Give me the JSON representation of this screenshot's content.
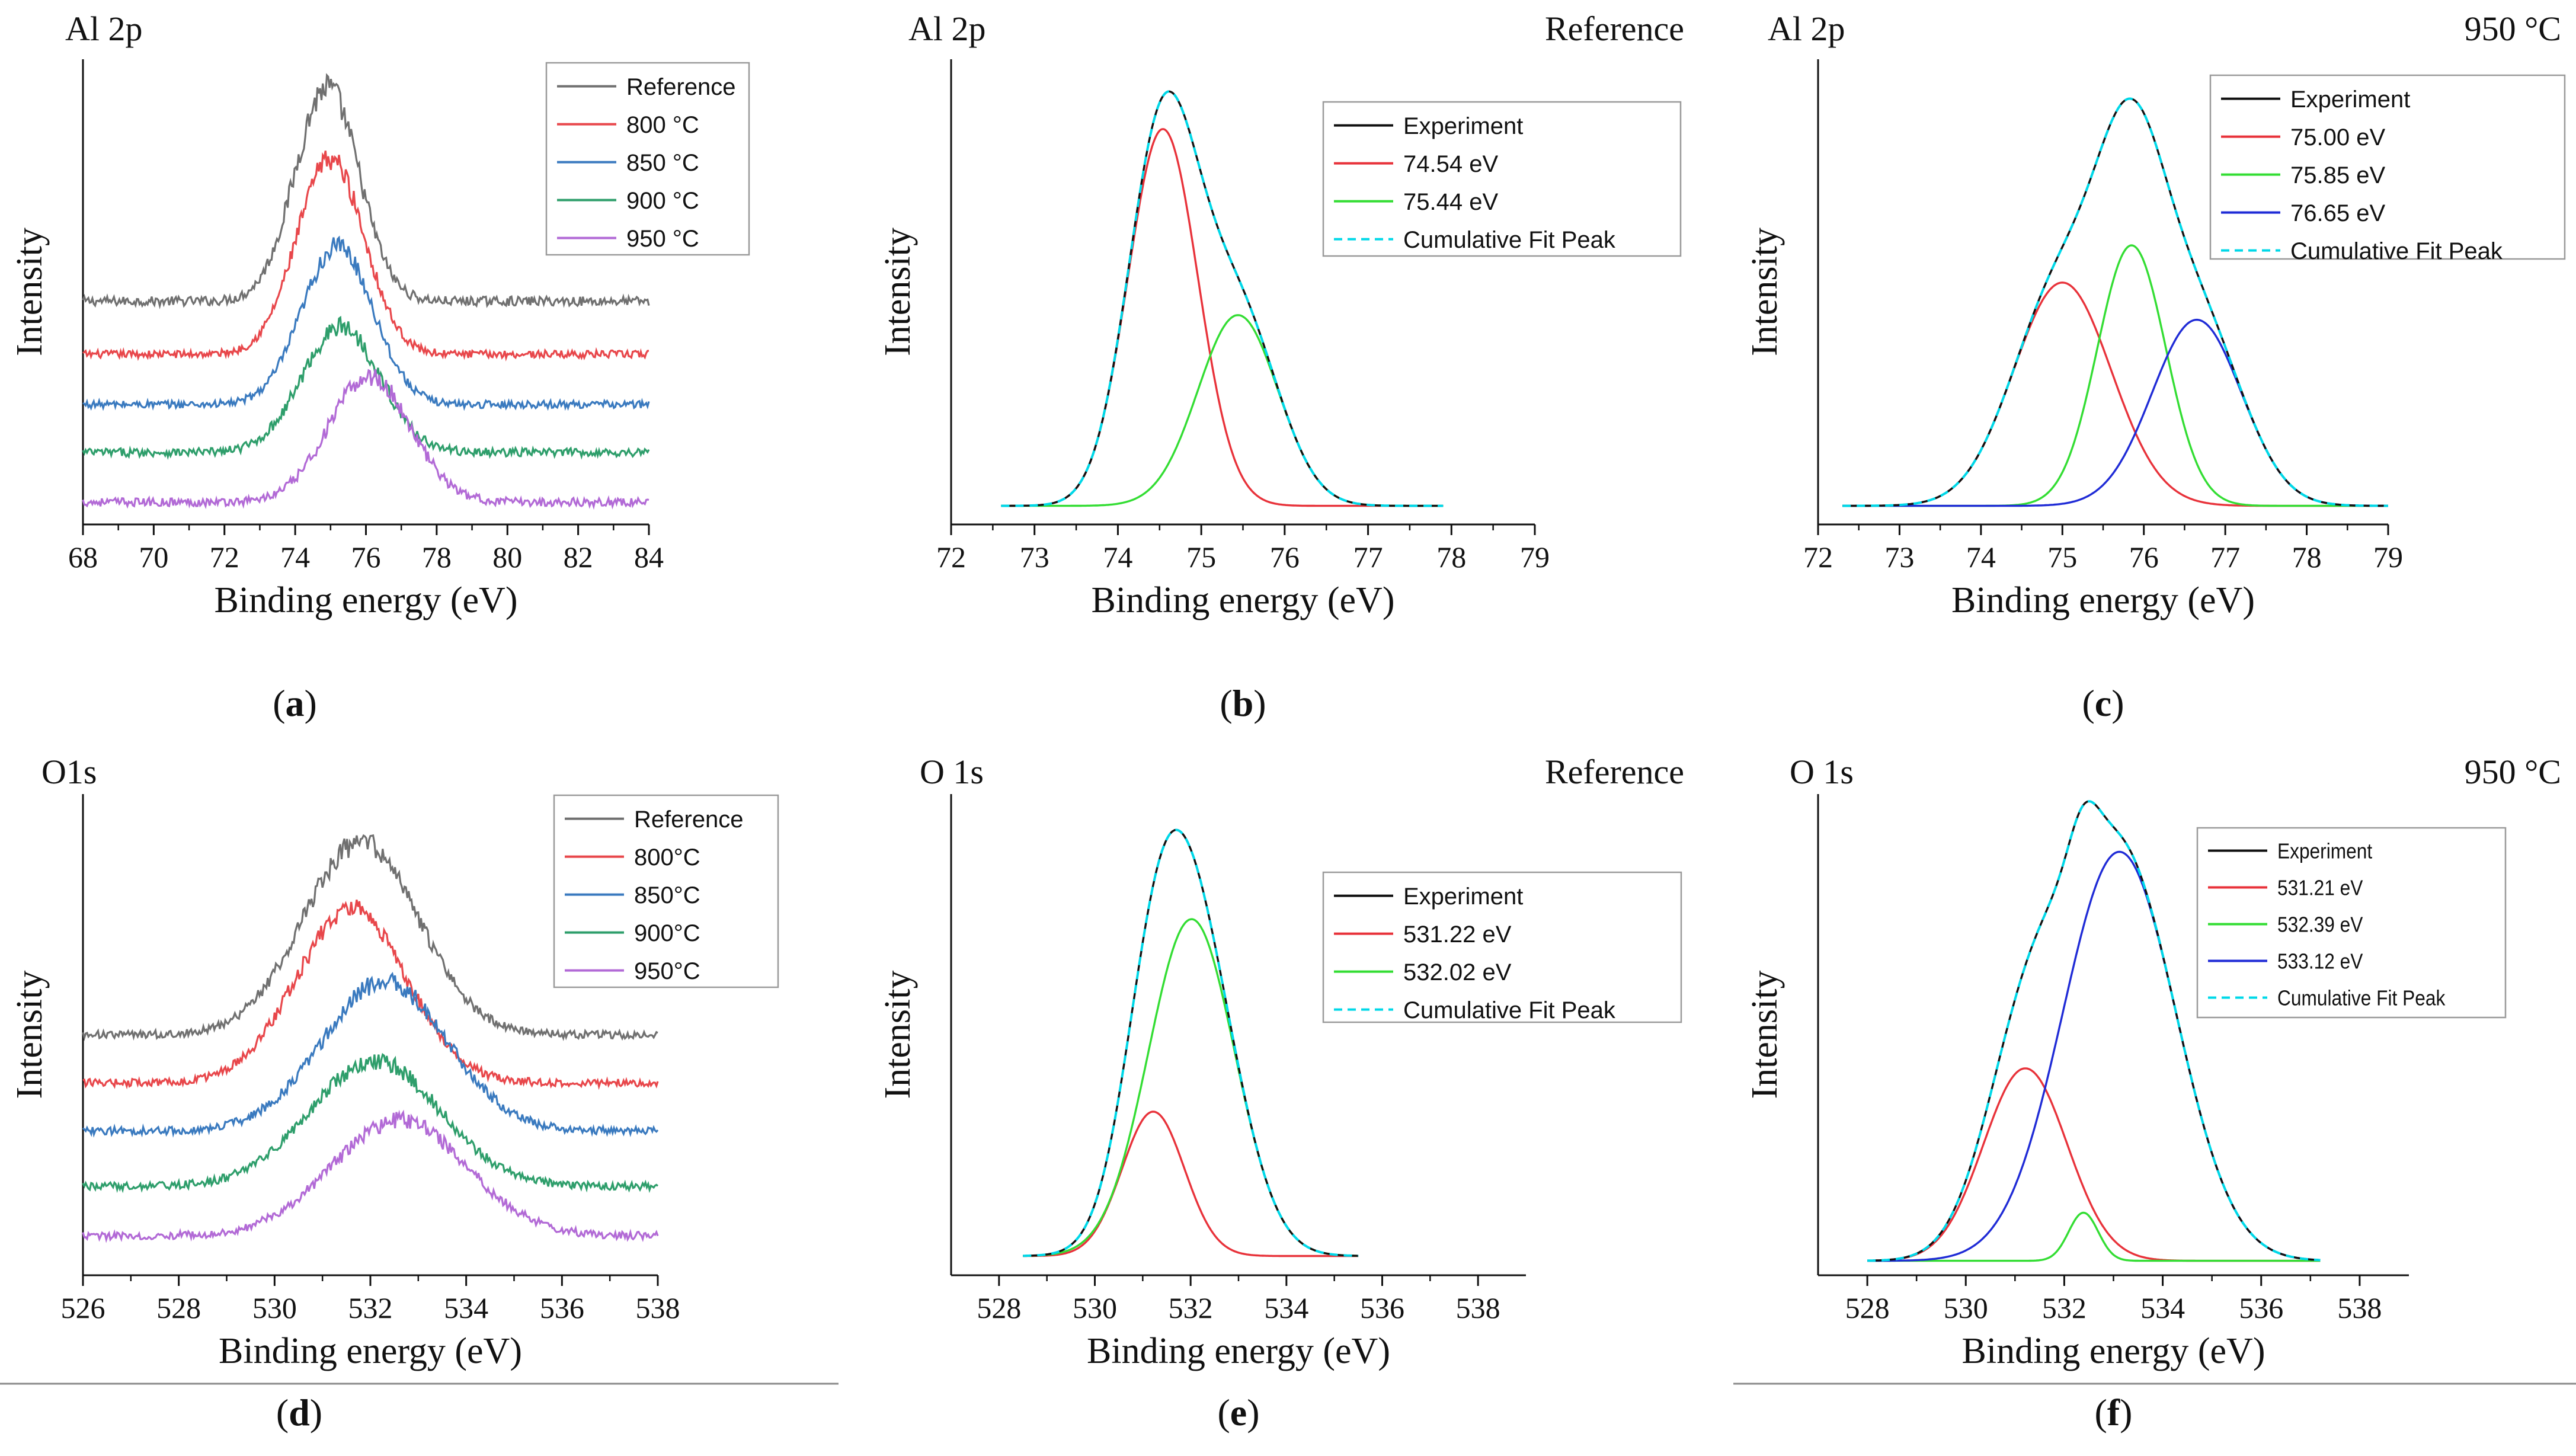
{
  "figure": {
    "background": "#ffffff"
  },
  "chart_data": [
    {
      "id": "a",
      "type": "line",
      "mode": "stack",
      "panel_label": "a",
      "title_left": "Al 2p",
      "title_right": "",
      "xlabel": "Binding energy (eV)",
      "ylabel": "Intensity",
      "xlim": [
        68,
        84
      ],
      "ylim": [
        0,
        1.0
      ],
      "xticks": [
        "68",
        "70",
        "72",
        "74",
        "76",
        "78",
        "80",
        "82",
        "84"
      ],
      "legend": {
        "position": "top-right",
        "font": "sans"
      },
      "series": [
        {
          "name": "Reference",
          "color": "#707070",
          "baseline": 0.48,
          "noise": 0.01,
          "peaks": [
            {
              "center": 74.9,
              "height": 0.46,
              "width": 0.9
            }
          ]
        },
        {
          "name": "800 °C",
          "color": "#e8474b",
          "baseline": 0.366,
          "noise": 0.008,
          "peaks": [
            {
              "center": 75.0,
              "height": 0.42,
              "width": 0.95
            }
          ]
        },
        {
          "name": "850 °C",
          "color": "#3a7abf",
          "baseline": 0.258,
          "noise": 0.008,
          "peaks": [
            {
              "center": 75.2,
              "height": 0.34,
              "width": 1.0
            }
          ]
        },
        {
          "name": "900 °C",
          "color": "#2e9e6b",
          "baseline": 0.155,
          "noise": 0.009,
          "peaks": [
            {
              "center": 75.3,
              "height": 0.27,
              "width": 1.1
            }
          ]
        },
        {
          "name": "950 °C",
          "color": "#b26ad6",
          "baseline": 0.048,
          "noise": 0.009,
          "peaks": [
            {
              "center": 76.1,
              "height": 0.27,
              "width": 1.15
            }
          ]
        }
      ]
    },
    {
      "id": "b",
      "type": "line",
      "mode": "fit",
      "panel_label": "b",
      "title_left": "Al 2p",
      "title_right": "Reference",
      "xlabel": "Binding energy (eV)",
      "ylabel": "Intensity",
      "xlim": [
        72,
        79
      ],
      "ylim": [
        0,
        1.0
      ],
      "xrange": [
        72.6,
        77.9
      ],
      "baseline": 0.04,
      "xticks": [
        "72",
        "73",
        "74",
        "75",
        "76",
        "77",
        "78",
        "79"
      ],
      "legend": {
        "position": "top-right",
        "font": "sans"
      },
      "series": [
        {
          "name": "Experiment",
          "color": "#111111",
          "kind": "sum"
        },
        {
          "name": "74.54 eV",
          "color": "#e8323a",
          "kind": "component",
          "center": 74.54,
          "height": 0.81,
          "width": 0.42
        },
        {
          "name": "75.44 eV",
          "color": "#33dd33",
          "kind": "component",
          "center": 75.44,
          "height": 0.41,
          "width": 0.48
        },
        {
          "name": "Cumulative Fit Peak",
          "color": "#00d8e8",
          "kind": "sum",
          "dashed": true
        }
      ]
    },
    {
      "id": "c",
      "type": "line",
      "mode": "fit",
      "panel_label": "c",
      "title_left": "Al 2p",
      "title_right": "950 °C",
      "xlabel": "Binding energy (eV)",
      "ylabel": "Intensity",
      "xlim": [
        72,
        79
      ],
      "ylim": [
        0,
        1.0
      ],
      "xrange": [
        72.3,
        79.0
      ],
      "baseline": 0.04,
      "xticks": [
        "72",
        "73",
        "74",
        "75",
        "76",
        "77",
        "78",
        "79"
      ],
      "legend": {
        "position": "top-right",
        "font": "sans"
      },
      "series": [
        {
          "name": "Experiment",
          "color": "#111111",
          "kind": "sum"
        },
        {
          "name": "75.00 eV",
          "color": "#e8323a",
          "kind": "component",
          "center": 75.0,
          "height": 0.48,
          "width": 0.6
        },
        {
          "name": "75.85 eV",
          "color": "#33dd33",
          "kind": "component",
          "center": 75.85,
          "height": 0.56,
          "width": 0.42
        },
        {
          "name": "76.65 eV",
          "color": "#1f2bd6",
          "kind": "component",
          "center": 76.65,
          "height": 0.4,
          "width": 0.55
        },
        {
          "name": "Cumulative Fit Peak",
          "color": "#00d8e8",
          "kind": "sum",
          "dashed": true
        }
      ]
    },
    {
      "id": "d",
      "type": "line",
      "mode": "stack",
      "panel_label": "d",
      "title_left": "O1s",
      "title_right": "",
      "xlabel": "Binding energy (eV)",
      "ylabel": "Intensity",
      "xlim": [
        526,
        538
      ],
      "ylim": [
        0,
        1.0
      ],
      "xticks": [
        "526",
        "528",
        "530",
        "532",
        "534",
        "536",
        "538"
      ],
      "legend": {
        "position": "top-right",
        "font": "sans"
      },
      "series": [
        {
          "name": "Reference",
          "color": "#707070",
          "baseline": 0.5,
          "noise": 0.008,
          "peaks": [
            {
              "center": 531.8,
              "height": 0.4,
              "width": 1.2
            }
          ]
        },
        {
          "name": "800°C",
          "color": "#e8474b",
          "baseline": 0.4,
          "noise": 0.008,
          "peaks": [
            {
              "center": 531.6,
              "height": 0.36,
              "width": 1.15
            }
          ]
        },
        {
          "name": "850°C",
          "color": "#3a7abf",
          "baseline": 0.3,
          "noise": 0.008,
          "peaks": [
            {
              "center": 532.3,
              "height": 0.31,
              "width": 1.3
            }
          ]
        },
        {
          "name": "900°C",
          "color": "#2e9e6b",
          "baseline": 0.185,
          "noise": 0.008,
          "peaks": [
            {
              "center": 532.1,
              "height": 0.26,
              "width": 1.35
            }
          ]
        },
        {
          "name": "950°C",
          "color": "#b26ad6",
          "baseline": 0.082,
          "noise": 0.008,
          "peaks": [
            {
              "center": 532.6,
              "height": 0.24,
              "width": 1.4
            }
          ]
        }
      ]
    },
    {
      "id": "e",
      "type": "line",
      "mode": "fit",
      "panel_label": "e",
      "title_left": "O 1s",
      "title_right": "Reference",
      "xlabel": "Binding energy (eV)",
      "ylabel": "Intensity",
      "xlim": [
        527,
        539
      ],
      "ylim": [
        0,
        1.0
      ],
      "xrange": [
        528.5,
        535.5
      ],
      "baseline": 0.04,
      "xticks": [
        "528",
        "530",
        "532",
        "534",
        "536",
        "538"
      ],
      "legend": {
        "position": "top-right",
        "font": "sans"
      },
      "series": [
        {
          "name": "Experiment",
          "color": "#111111",
          "kind": "sum"
        },
        {
          "name": "531.22 eV",
          "color": "#e8323a",
          "kind": "component",
          "center": 531.22,
          "height": 0.3,
          "width": 0.65
        },
        {
          "name": "532.02 eV",
          "color": "#33dd33",
          "kind": "component",
          "center": 532.02,
          "height": 0.7,
          "width": 0.9
        },
        {
          "name": "Cumulative Fit Peak",
          "color": "#00d8e8",
          "kind": "sum",
          "dashed": true
        }
      ]
    },
    {
      "id": "f",
      "type": "line",
      "mode": "fit",
      "panel_label": "f",
      "title_left": "O 1s",
      "title_right": "950 °C",
      "xlabel": "Binding energy (eV)",
      "ylabel": "Intensity",
      "xlim": [
        527,
        539
      ],
      "ylim": [
        0,
        1.0
      ],
      "xrange": [
        528.0,
        537.2
      ],
      "baseline": 0.03,
      "xticks": [
        "528",
        "530",
        "532",
        "534",
        "536",
        "538"
      ],
      "legend": {
        "position": "top-right",
        "font": "sans-condensed"
      },
      "series": [
        {
          "name": "Experiment",
          "color": "#111111",
          "kind": "sum"
        },
        {
          "name": "531.21 eV",
          "color": "#e8323a",
          "kind": "component",
          "center": 531.21,
          "height": 0.4,
          "width": 0.85
        },
        {
          "name": "532.39 eV",
          "color": "#33dd33",
          "kind": "component",
          "center": 532.39,
          "height": 0.1,
          "width": 0.3
        },
        {
          "name": "533.12 eV",
          "color": "#1f2bd6",
          "kind": "component",
          "center": 533.12,
          "height": 0.85,
          "width": 1.15
        },
        {
          "name": "Cumulative Fit Peak",
          "color": "#00d8e8",
          "kind": "sum",
          "dashed": true
        }
      ]
    }
  ]
}
